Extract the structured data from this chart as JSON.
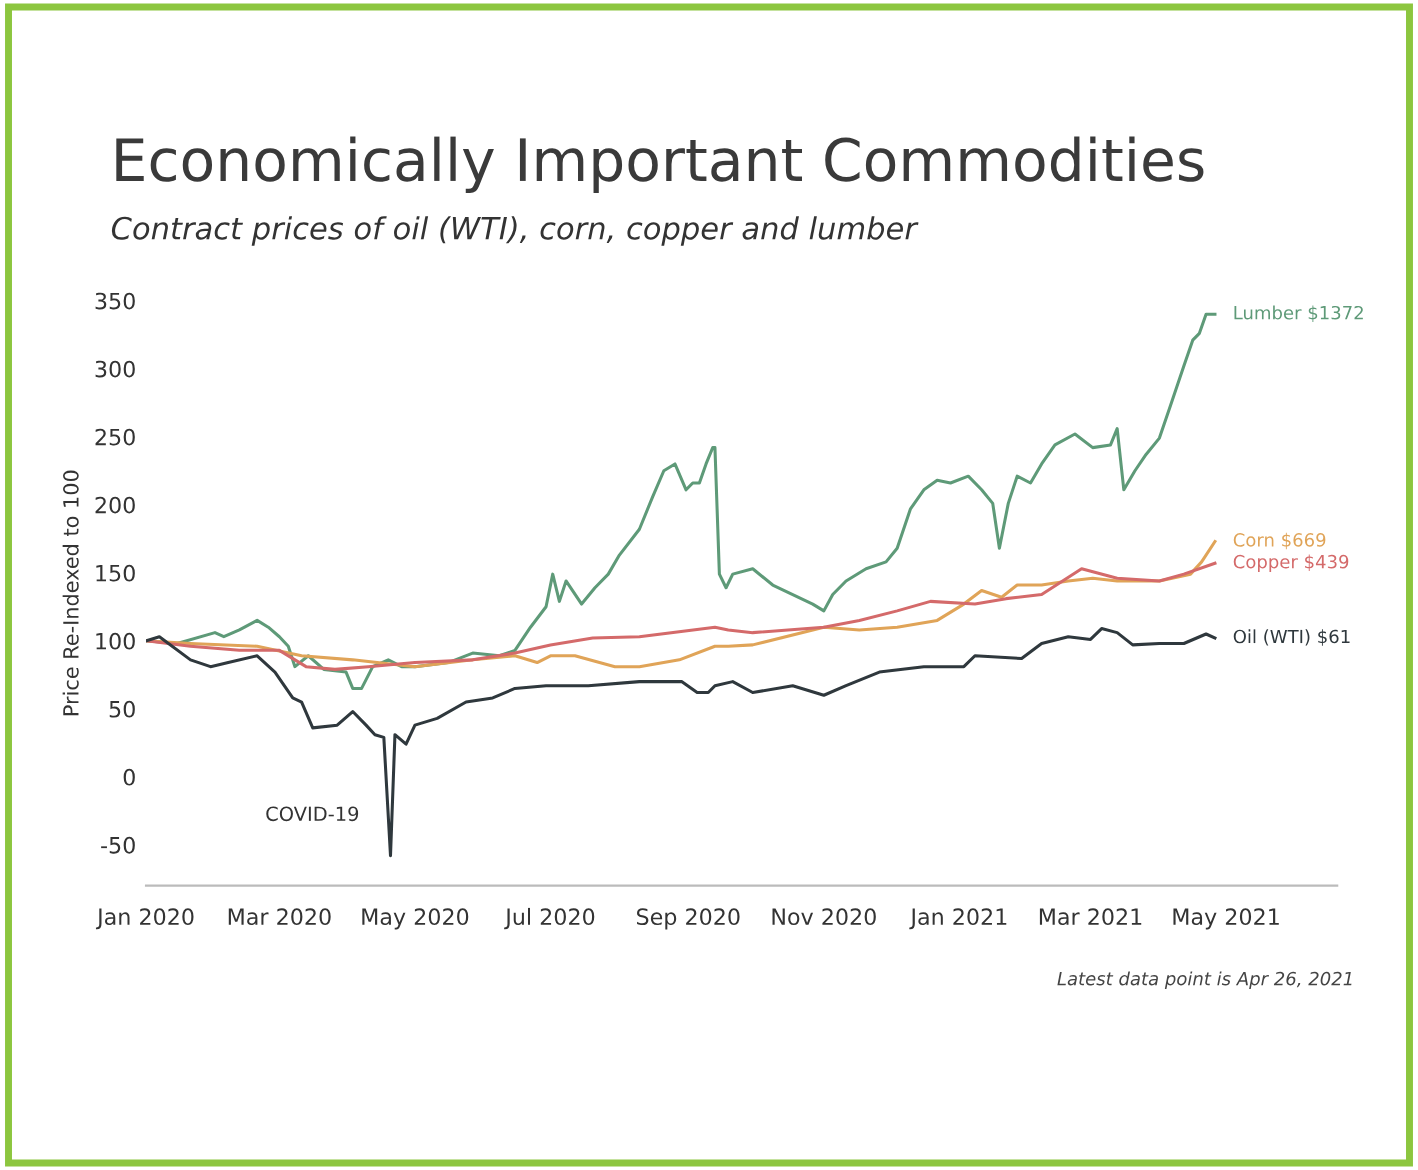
{
  "chart_data": {
    "type": "line",
    "title": "Economically Important Commodities",
    "subtitle": "Contract prices of oil (WTI), corn, copper and lumber",
    "ylabel": "Price Re-Indexed to 100",
    "xlim": [
      "2020-01-01",
      "2021-06-20"
    ],
    "ylim": [
      -80,
      350
    ],
    "yticks": [
      -50,
      0,
      50,
      100,
      150,
      200,
      250,
      300,
      350
    ],
    "xticks": [
      {
        "value": "2020-01-01",
        "label": "Jan 2020"
      },
      {
        "value": "2020-03-01",
        "label": "Mar 2020"
      },
      {
        "value": "2020-05-01",
        "label": "May 2020"
      },
      {
        "value": "2020-07-01",
        "label": "Jul 2020"
      },
      {
        "value": "2020-09-01",
        "label": "Sep 2020"
      },
      {
        "value": "2020-11-01",
        "label": "Nov 2020"
      },
      {
        "value": "2021-01-01",
        "label": "Jan 2021"
      },
      {
        "value": "2021-03-01",
        "label": "Mar 2021"
      },
      {
        "value": "2021-05-01",
        "label": "May 2021"
      }
    ],
    "grid": false,
    "legend": false,
    "series": [
      {
        "name": "Lumber $1372",
        "color": "#5e9a78",
        "x": [
          "2020-01-01",
          "2020-01-15",
          "2020-02-01",
          "2020-02-05",
          "2020-02-12",
          "2020-02-20",
          "2020-02-25",
          "2020-03-01",
          "2020-03-05",
          "2020-03-08",
          "2020-03-14",
          "2020-03-21",
          "2020-03-31",
          "2020-04-03",
          "2020-04-07",
          "2020-04-12",
          "2020-04-19",
          "2020-04-25",
          "2020-05-01",
          "2020-05-16",
          "2020-05-27",
          "2020-06-08",
          "2020-06-15",
          "2020-06-22",
          "2020-06-29",
          "2020-07-02",
          "2020-07-05",
          "2020-07-08",
          "2020-07-15",
          "2020-07-21",
          "2020-07-27",
          "2020-08-01",
          "2020-08-10",
          "2020-08-16",
          "2020-08-21",
          "2020-08-26",
          "2020-08-31",
          "2020-09-03",
          "2020-09-06",
          "2020-09-09",
          "2020-09-12",
          "2020-09-13",
          "2020-09-15",
          "2020-09-18",
          "2020-09-21",
          "2020-09-30",
          "2020-10-09",
          "2020-10-18",
          "2020-10-27",
          "2020-11-01",
          "2020-11-05",
          "2020-11-11",
          "2020-11-20",
          "2020-11-29",
          "2020-12-04",
          "2020-12-10",
          "2020-12-16",
          "2020-12-22",
          "2020-12-28",
          "2021-01-05",
          "2021-01-11",
          "2021-01-16",
          "2021-01-19",
          "2021-01-23",
          "2021-01-27",
          "2021-02-02",
          "2021-02-07",
          "2021-02-13",
          "2021-02-22",
          "2021-03-02",
          "2021-03-10",
          "2021-03-13",
          "2021-03-16",
          "2021-03-21",
          "2021-03-26",
          "2021-04-01",
          "2021-04-06",
          "2021-04-12",
          "2021-04-16",
          "2021-04-19",
          "2021-04-22",
          "2021-04-26"
        ],
        "values": [
          100,
          98,
          106,
          103,
          108,
          115,
          110,
          103,
          96,
          81,
          89,
          79,
          77,
          65,
          65,
          81,
          86,
          81,
          81,
          84,
          91,
          89,
          93,
          110,
          125,
          149,
          129,
          144,
          127,
          139,
          149,
          163,
          182,
          206,
          225,
          230,
          211,
          216,
          216,
          230,
          242,
          242,
          149,
          139,
          149,
          153,
          141,
          134,
          127,
          122,
          134,
          144,
          153,
          158,
          168,
          197,
          211,
          218,
          216,
          221,
          211,
          201,
          168,
          201,
          221,
          216,
          230,
          244,
          252,
          242,
          244,
          256,
          211,
          225,
          237,
          249,
          273,
          302,
          321,
          326,
          340,
          340
        ]
      },
      {
        "name": "Corn $669",
        "color": "#e0a458",
        "x": [
          "2020-01-01",
          "2020-01-21",
          "2020-02-20",
          "2020-03-11",
          "2020-04-03",
          "2020-05-01",
          "2020-05-27",
          "2020-06-15",
          "2020-06-25",
          "2020-07-01",
          "2020-07-12",
          "2020-07-30",
          "2020-08-10",
          "2020-08-28",
          "2020-09-13",
          "2020-09-19",
          "2020-09-30",
          "2020-11-01",
          "2020-11-17",
          "2020-12-04",
          "2020-12-22",
          "2021-01-03",
          "2021-01-11",
          "2021-01-20",
          "2021-01-27",
          "2021-02-07",
          "2021-02-19",
          "2021-03-02",
          "2021-03-13",
          "2021-04-01",
          "2021-04-15",
          "2021-04-20",
          "2021-04-26"
        ],
        "values": [
          100,
          98,
          96,
          89,
          86,
          81,
          86,
          89,
          84,
          89,
          89,
          81,
          81,
          86,
          96,
          96,
          97,
          110,
          108,
          110,
          115,
          127,
          137,
          132,
          141,
          141,
          144,
          146,
          144,
          144,
          149,
          158,
          173
        ]
      },
      {
        "name": "Copper $439",
        "color": "#d46a6a",
        "x": [
          "2020-01-01",
          "2020-01-21",
          "2020-02-12",
          "2020-03-01",
          "2020-03-13",
          "2020-03-26",
          "2020-04-10",
          "2020-05-01",
          "2020-05-27",
          "2020-06-15",
          "2020-07-01",
          "2020-07-20",
          "2020-08-10",
          "2020-09-13",
          "2020-09-19",
          "2020-09-30",
          "2020-11-01",
          "2020-11-17",
          "2020-12-04",
          "2020-12-19",
          "2021-01-08",
          "2021-01-22",
          "2021-02-07",
          "2021-02-25",
          "2021-03-13",
          "2021-04-01",
          "2021-04-12",
          "2021-04-26"
        ],
        "values": [
          100,
          96,
          93,
          93,
          81,
          79,
          81,
          84,
          86,
          91,
          97,
          102,
          103,
          110,
          108,
          106,
          110,
          115,
          122,
          129,
          127,
          131,
          134,
          153,
          146,
          144,
          149,
          157
        ]
      },
      {
        "name": "Oil (WTI) $61",
        "color": "#2f383d",
        "x": [
          "2020-01-01",
          "2020-01-07",
          "2020-01-21",
          "2020-01-30",
          "2020-02-07",
          "2020-02-20",
          "2020-02-28",
          "2020-03-07",
          "2020-03-11",
          "2020-03-16",
          "2020-03-27",
          "2020-04-03",
          "2020-04-09",
          "2020-04-13",
          "2020-04-17",
          "2020-04-20",
          "2020-04-22",
          "2020-04-27",
          "2020-05-01",
          "2020-05-11",
          "2020-05-24",
          "2020-06-05",
          "2020-06-15",
          "2020-06-29",
          "2020-07-18",
          "2020-08-10",
          "2020-08-29",
          "2020-09-05",
          "2020-09-10",
          "2020-09-13",
          "2020-09-21",
          "2020-09-30",
          "2020-10-18",
          "2020-11-01",
          "2020-11-11",
          "2020-11-26",
          "2020-12-16",
          "2021-01-03",
          "2021-01-08",
          "2021-01-29",
          "2021-02-07",
          "2021-02-19",
          "2021-03-01",
          "2021-03-06",
          "2021-03-13",
          "2021-03-20",
          "2021-04-01",
          "2021-04-12",
          "2021-04-22",
          "2021-04-26"
        ],
        "values": [
          100,
          103,
          86,
          81,
          84,
          89,
          77,
          58,
          55,
          36,
          38,
          48,
          38,
          31,
          29,
          -58,
          31,
          24,
          38,
          43,
          55,
          58,
          65,
          67,
          67,
          70,
          70,
          62,
          62,
          67,
          70,
          62,
          67,
          60,
          67,
          77,
          81,
          81,
          89,
          87,
          98,
          103,
          101,
          109,
          106,
          97,
          98,
          98,
          105,
          102
        ]
      }
    ],
    "annotations": [
      "COVID-19",
      "Latest data point is Apr 26, 2021"
    ]
  }
}
